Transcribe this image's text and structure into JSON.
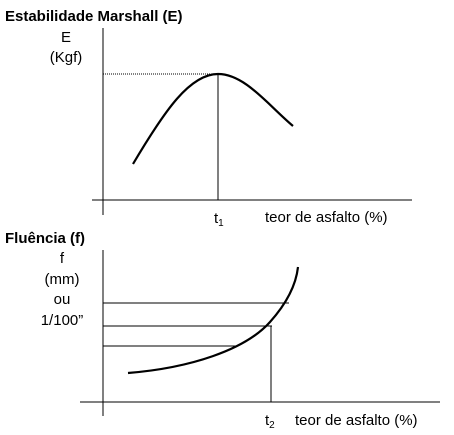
{
  "top": {
    "title": "Estabilidade Marshall (E)",
    "y_label": [
      "E",
      "(Kgf)"
    ],
    "x_mark": {
      "base": "t",
      "sub": "1"
    },
    "x_label": "teor de asfalto (%)"
  },
  "bottom": {
    "title": "Fluência (f)",
    "y_label": [
      "f",
      "(mm)",
      "ou",
      "1/100”"
    ],
    "x_mark": {
      "base": "t",
      "sub": "2"
    },
    "x_label": "teor de asfalto (%)"
  }
}
